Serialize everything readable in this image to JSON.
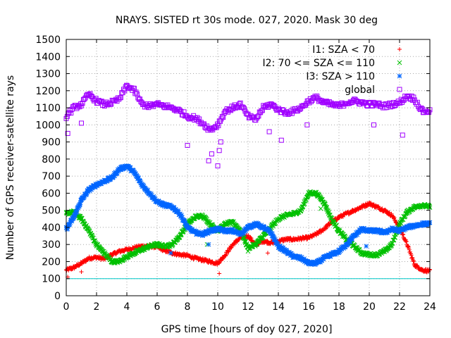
{
  "chart_data": {
    "type": "scatter",
    "title": "NRAYS. SISTED rt 30s mode. 027, 2020. Mask 30 deg",
    "xlabel": "GPS time [hours of doy 027, 2020]",
    "ylabel": "Number of GPS receiver-satellite rays",
    "xlim": [
      0,
      24
    ],
    "ylim": [
      0,
      1500
    ],
    "xticks": [
      0,
      2,
      4,
      6,
      8,
      10,
      12,
      14,
      16,
      18,
      20,
      22,
      24
    ],
    "yticks": [
      0,
      100,
      200,
      300,
      400,
      500,
      600,
      700,
      800,
      900,
      1000,
      1100,
      1200,
      1300,
      1400,
      1500
    ],
    "grid": true,
    "legend_position": "top-right",
    "mask_line": {
      "y": 100,
      "color": "#00c8c8"
    },
    "series": [
      {
        "name": "I1: SZA < 70",
        "marker": "+",
        "color": "#ff0000",
        "x": [
          0,
          0.5,
          1,
          1.5,
          2,
          2.5,
          3,
          3.5,
          4,
          4.5,
          5,
          5.5,
          6,
          6.5,
          7,
          7.5,
          8,
          8.5,
          9,
          9.5,
          10,
          10.5,
          11,
          11.5,
          12,
          12.5,
          13,
          13.5,
          14,
          14.5,
          15,
          15.5,
          16,
          16.5,
          17,
          17.5,
          18,
          18.5,
          19,
          19.5,
          20,
          20.5,
          21,
          21.5,
          22,
          22.5,
          23,
          23.5,
          24
        ],
        "y": [
          150,
          165,
          190,
          220,
          225,
          215,
          240,
          260,
          270,
          280,
          290,
          290,
          285,
          265,
          250,
          240,
          235,
          220,
          210,
          200,
          190,
          240,
          300,
          340,
          350,
          300,
          320,
          310,
          320,
          330,
          330,
          335,
          340,
          360,
          390,
          430,
          460,
          480,
          500,
          520,
          540,
          520,
          500,
          470,
          400,
          300,
          180,
          150,
          145
        ]
      },
      {
        "name": "I2: 70 <= SZA <= 110",
        "marker": "x",
        "color": "#00c000",
        "x": [
          0,
          0.5,
          1,
          1.5,
          2,
          2.5,
          3,
          3.5,
          4,
          4.5,
          5,
          5.5,
          6,
          6.5,
          7,
          7.5,
          8,
          8.5,
          9,
          9.5,
          10,
          10.5,
          11,
          11.5,
          12,
          12.5,
          13,
          13.5,
          14,
          14.5,
          15,
          15.5,
          16,
          16.5,
          17,
          17.5,
          18,
          18.5,
          19,
          19.5,
          20,
          20.5,
          21,
          21.5,
          22,
          22.5,
          23,
          23.5,
          24
        ],
        "y": [
          480,
          490,
          450,
          380,
          300,
          250,
          200,
          200,
          230,
          250,
          270,
          290,
          300,
          290,
          300,
          350,
          420,
          460,
          470,
          420,
          380,
          420,
          430,
          380,
          280,
          300,
          350,
          400,
          450,
          470,
          480,
          500,
          600,
          600,
          550,
          450,
          380,
          330,
          290,
          250,
          240,
          240,
          260,
          300,
          420,
          490,
          520,
          530,
          520
        ]
      },
      {
        "name": "I3: SZA > 110",
        "marker": "*",
        "color": "#0066ff",
        "x": [
          0,
          0.5,
          1,
          1.5,
          2,
          2.5,
          3,
          3.5,
          4,
          4.5,
          5,
          5.5,
          6,
          6.5,
          7,
          7.5,
          8,
          8.5,
          9,
          9.5,
          10,
          10.5,
          11,
          11.5,
          12,
          12.5,
          13,
          13.5,
          14,
          14.5,
          15,
          15.5,
          16,
          16.5,
          17,
          17.5,
          18,
          18.5,
          19,
          19.5,
          20,
          20.5,
          21,
          21.5,
          22,
          22.5,
          23,
          23.5,
          24
        ],
        "y": [
          390,
          460,
          560,
          620,
          650,
          670,
          690,
          740,
          760,
          720,
          650,
          600,
          550,
          530,
          520,
          480,
          400,
          370,
          360,
          380,
          390,
          380,
          380,
          360,
          400,
          420,
          400,
          370,
          290,
          260,
          230,
          220,
          190,
          190,
          220,
          240,
          260,
          300,
          350,
          390,
          380,
          380,
          370,
          390,
          380,
          400,
          410,
          420,
          420
        ]
      },
      {
        "name": "global",
        "marker": "square",
        "color": "#a000ff",
        "x": [
          0,
          0.5,
          1,
          1.5,
          2,
          2.5,
          3,
          3.5,
          4,
          4.5,
          5,
          5.5,
          6,
          6.5,
          7,
          7.5,
          8,
          8.5,
          9,
          9.5,
          10,
          10.5,
          11,
          11.5,
          12,
          12.5,
          13,
          13.5,
          14,
          14.5,
          15,
          15.5,
          16,
          16.5,
          17,
          17.5,
          18,
          18.5,
          19,
          19.5,
          20,
          20.5,
          21,
          21.5,
          22,
          22.5,
          23,
          23.5,
          24
        ],
        "y": [
          1050,
          1100,
          1120,
          1180,
          1140,
          1120,
          1130,
          1150,
          1230,
          1200,
          1120,
          1110,
          1120,
          1110,
          1100,
          1080,
          1050,
          1040,
          1010,
          970,
          1000,
          1080,
          1100,
          1120,
          1050,
          1030,
          1100,
          1120,
          1090,
          1070,
          1080,
          1100,
          1140,
          1160,
          1130,
          1120,
          1110,
          1130,
          1140,
          1130,
          1120,
          1120,
          1110,
          1120,
          1130,
          1170,
          1150,
          1080,
          1080
        ]
      }
    ],
    "dips": [
      {
        "series": 3,
        "x": 9.4,
        "y": 790
      },
      {
        "series": 3,
        "x": 9.6,
        "y": 830
      },
      {
        "series": 3,
        "x": 10.0,
        "y": 760
      },
      {
        "series": 3,
        "x": 10.1,
        "y": 850
      },
      {
        "series": 3,
        "x": 10.2,
        "y": 900
      },
      {
        "series": 3,
        "x": 8.0,
        "y": 880
      },
      {
        "series": 3,
        "x": 13.4,
        "y": 960
      },
      {
        "series": 3,
        "x": 14.2,
        "y": 910
      },
      {
        "series": 3,
        "x": 15.9,
        "y": 1000
      },
      {
        "series": 3,
        "x": 22.2,
        "y": 940
      },
      {
        "series": 3,
        "x": 0.1,
        "y": 950
      },
      {
        "series": 3,
        "x": 1.0,
        "y": 1010
      },
      {
        "series": 3,
        "x": 20.3,
        "y": 1000
      },
      {
        "series": 0,
        "x": 0.1,
        "y": 110
      },
      {
        "series": 0,
        "x": 10.1,
        "y": 130
      },
      {
        "series": 0,
        "x": 13.3,
        "y": 250
      },
      {
        "series": 0,
        "x": 1.0,
        "y": 140
      },
      {
        "series": 2,
        "x": 6.9,
        "y": 250
      },
      {
        "series": 2,
        "x": 9.4,
        "y": 300
      },
      {
        "series": 2,
        "x": 19.8,
        "y": 290
      },
      {
        "series": 1,
        "x": 9.3,
        "y": 300
      },
      {
        "series": 1,
        "x": 16.8,
        "y": 510
      },
      {
        "series": 1,
        "x": 12.0,
        "y": 260
      }
    ]
  }
}
